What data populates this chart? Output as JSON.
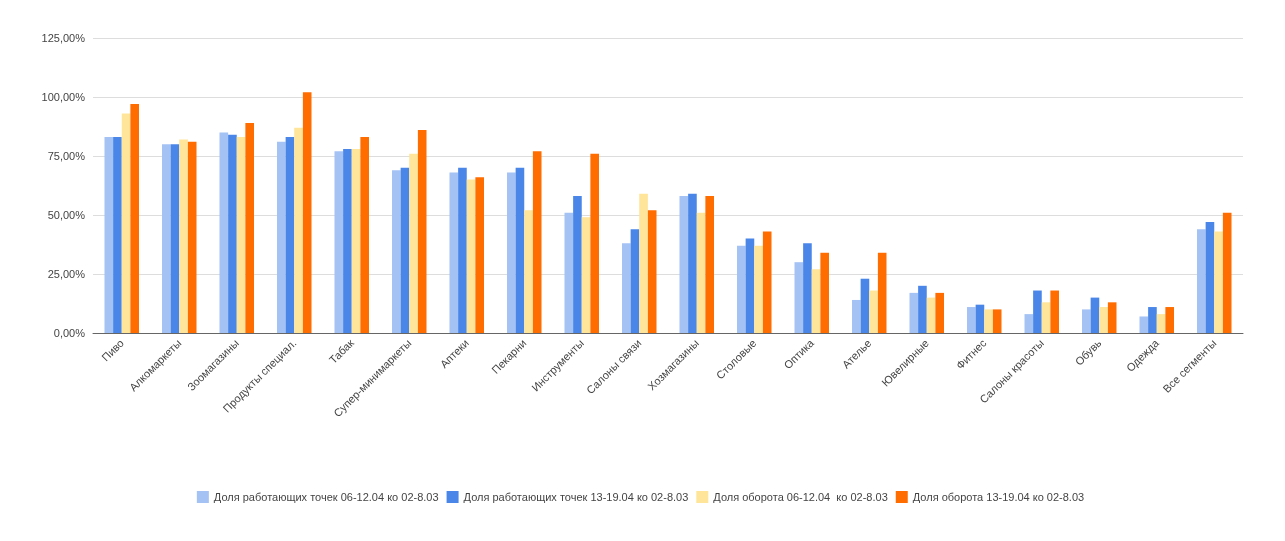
{
  "chart_data": {
    "type": "bar",
    "categories": [
      "Пиво",
      "Алкомаркеты",
      "Зоомагазины",
      "Продукты специал.",
      "Табак",
      "Супер-минимаркеты",
      "Аптеки",
      "Пекарни",
      "Инструменты",
      "Салоны связи",
      "Хозмагазины",
      "Столовые",
      "Оптика",
      "Ателье",
      "Ювелирные",
      "Фитнес",
      "Салоны красоты",
      "Обувь",
      "Одежда",
      "Все сегменты"
    ],
    "series": [
      {
        "name": "Доля работающих точек 06-12.04 ко 02-8.03",
        "color": "#a4c2f4",
        "values": [
          83,
          80,
          85,
          81,
          77,
          69,
          68,
          68,
          51,
          38,
          58,
          37,
          30,
          14,
          17,
          11,
          8,
          10,
          7,
          44
        ]
      },
      {
        "name": "Доля работающих точек 13-19.04 ко 02-8.03",
        "color": "#4a86e8",
        "values": [
          83,
          80,
          84,
          83,
          78,
          70,
          70,
          70,
          58,
          44,
          59,
          40,
          38,
          23,
          20,
          12,
          18,
          15,
          11,
          47
        ]
      },
      {
        "name": "Доля оборота 06-12.04  ко 02-8.03",
        "color": "#ffe599",
        "values": [
          93,
          82,
          83,
          87,
          78,
          76,
          65,
          52,
          49,
          59,
          51,
          37,
          27,
          18,
          15,
          10,
          13,
          11,
          8,
          43
        ]
      },
      {
        "name": "Доля оборота 13-19.04 ко 02-8.03",
        "color": "#ff6d01",
        "values": [
          97,
          81,
          89,
          102,
          83,
          86,
          66,
          77,
          76,
          52,
          58,
          43,
          34,
          34,
          17,
          10,
          18,
          13,
          11,
          51
        ]
      }
    ],
    "ylim": [
      0,
      125
    ],
    "yticks": [
      {
        "value": 0,
        "label": "0,00%"
      },
      {
        "value": 25,
        "label": "25,00%"
      },
      {
        "value": 50,
        "label": "50,00%"
      },
      {
        "value": 75,
        "label": "75,00%"
      },
      {
        "value": 100,
        "label": "100,00%"
      },
      {
        "value": 125,
        "label": "125,00%"
      }
    ],
    "grid": "y",
    "legend": "bottom"
  }
}
